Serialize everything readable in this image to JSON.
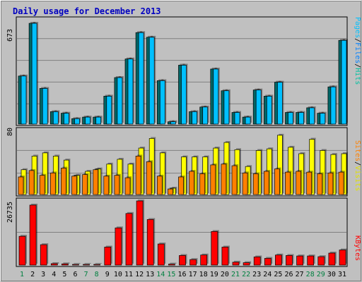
{
  "chart_data": [
    {
      "type": "bar",
      "title": "Daily usage for December 2013",
      "categories": [
        "1",
        "2",
        "3",
        "4",
        "5",
        "6",
        "7",
        "8",
        "9",
        "10",
        "11",
        "12",
        "13",
        "14",
        "15",
        "16",
        "17",
        "18",
        "19",
        "20",
        "21",
        "22",
        "23",
        "24",
        "25",
        "26",
        "27",
        "28",
        "29",
        "30",
        "31"
      ],
      "weekend_days": [
        "1",
        "7",
        "8",
        "14",
        "15",
        "21",
        "22",
        "28",
        "29"
      ],
      "ymax_label": "673",
      "ylim": [
        0,
        673
      ],
      "series": [
        {
          "name": "Pages",
          "values": [
            310,
            650,
            230,
            80,
            70,
            35,
            45,
            45,
            180,
            300,
            420,
            590,
            560,
            280,
            15,
            380,
            80,
            110,
            355,
            215,
            75,
            45,
            220,
            180,
            270,
            75,
            75,
            105,
            70,
            240,
            540
          ]
        },
        {
          "name": "Files",
          "values": [
            305,
            645,
            225,
            75,
            55,
            25,
            40,
            40,
            175,
            300,
            415,
            580,
            550,
            270,
            15,
            375,
            75,
            105,
            345,
            210,
            60,
            40,
            210,
            160,
            275,
            70,
            70,
            95,
            65,
            230,
            525
          ]
        },
        {
          "name": "Hits",
          "values": [
            310,
            650,
            230,
            80,
            70,
            35,
            45,
            45,
            180,
            300,
            420,
            590,
            560,
            280,
            15,
            380,
            80,
            110,
            355,
            215,
            75,
            45,
            220,
            180,
            270,
            75,
            75,
            105,
            70,
            240,
            540
          ]
        }
      ],
      "legend": [
        "Pages",
        "Files",
        "Hits"
      ],
      "colors": {
        "pages": "#00c0ff",
        "files": "#0080ff",
        "hits": "#00c0a0",
        "dark": "#006666"
      }
    },
    {
      "type": "bar",
      "ymax_label": "80",
      "ylim": [
        0,
        80
      ],
      "series": [
        {
          "name": "Visits",
          "values": [
            31,
            48,
            52,
            48,
            43,
            24,
            29,
            32,
            38,
            44,
            38,
            58,
            70,
            52,
            8,
            47,
            47,
            47,
            58,
            65,
            56,
            35,
            55,
            57,
            74,
            59,
            51,
            69,
            55,
            50,
            51
          ]
        },
        {
          "name": "Sites",
          "values": [
            22,
            30,
            24,
            27,
            33,
            23,
            25,
            31,
            23,
            24,
            21,
            48,
            41,
            23,
            7,
            22,
            29,
            26,
            37,
            38,
            36,
            27,
            26,
            29,
            32,
            28,
            29,
            28,
            26,
            27,
            28
          ]
        }
      ],
      "legend": [
        "Sites",
        "Visits"
      ],
      "colors": {
        "visits": "#ffff00",
        "sites": "#ff8000"
      }
    },
    {
      "type": "bar",
      "ymax_label": "26735",
      "ylim": [
        0,
        26735
      ],
      "series": [
        {
          "name": "KBytes",
          "values": [
            12000,
            25000,
            8500,
            600,
            500,
            200,
            150,
            150,
            7500,
            15500,
            21500,
            26735,
            19000,
            8800,
            400,
            4000,
            2300,
            4200,
            14000,
            7500,
            1200,
            1000,
            3400,
            2800,
            4200,
            4000,
            3800,
            3800,
            3500,
            5000,
            6300
          ]
        }
      ],
      "legend": [
        "KBytes"
      ],
      "colors": {
        "kbytes": "#ff0000"
      }
    }
  ],
  "ui": {
    "title": "Daily usage for December 2013",
    "ymax_top": "673",
    "ymax_mid": "80",
    "ymax_bot": "26735",
    "legend_pages": "Pages",
    "legend_files": "Files",
    "legend_hits": "Hits",
    "legend_sites": "Sites",
    "legend_visits": "Visits",
    "legend_kbytes": "KBytes",
    "legend_sep": "/"
  }
}
